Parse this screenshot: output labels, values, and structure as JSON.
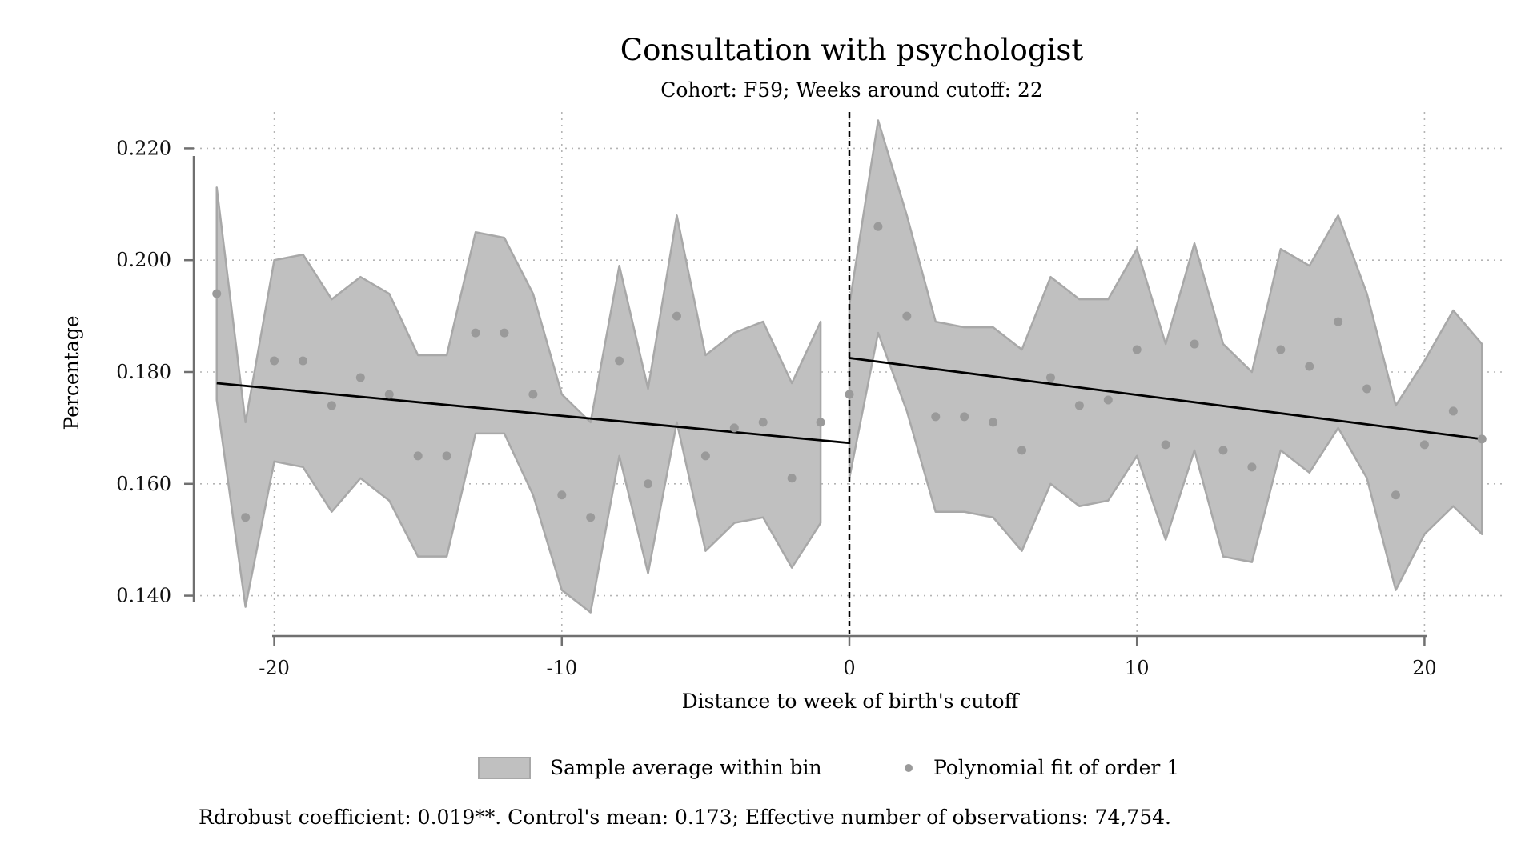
{
  "chart_data": {
    "type": "scatter",
    "title": "Consultation with psychologist",
    "subtitle": "Cohort: F59; Weeks around cutoff: 22",
    "xlabel": "Distance to week of birth's cutoff",
    "ylabel": "Percentage",
    "xlim": [
      -22.8,
      22.8
    ],
    "ylim": [
      0.1335,
      0.2265
    ],
    "xticks": [
      -20,
      -10,
      0,
      10,
      20
    ],
    "xtick_labels": [
      "-20",
      "-10",
      "0",
      "10",
      "20"
    ],
    "yticks": [
      0.14,
      0.16,
      0.18,
      0.2,
      0.22
    ],
    "ytick_labels": [
      "0.140",
      "0.160",
      "0.180",
      "0.200",
      "0.220"
    ],
    "grid": "dotted",
    "cutoff_line_x": 0,
    "legend": {
      "placement": "bottom",
      "items": [
        "Sample average within bin",
        "Polynomial fit of order 1"
      ]
    },
    "note": "Rdrobust coefficient: 0.019**. Control's mean: 0.173; Effective number of observations: 74,754.",
    "colors": {
      "band": "#c0c0c0",
      "band_edge": "#a8a8a8",
      "points": "#9a9a9a",
      "fit": "#000000",
      "grid": "#b4b4b4",
      "axis": "#707070"
    },
    "confidence_band": {
      "left": {
        "x": [
          -22,
          -21,
          -20,
          -19,
          -18,
          -17,
          -16,
          -15,
          -14,
          -13,
          -12,
          -11,
          -10,
          -9,
          -8,
          -7,
          -6,
          -5,
          -4,
          -3,
          -2,
          -1
        ],
        "upper": [
          0.213,
          0.171,
          0.2,
          0.201,
          0.193,
          0.197,
          0.194,
          0.183,
          0.183,
          0.205,
          0.204,
          0.194,
          0.176,
          0.171,
          0.199,
          0.177,
          0.208,
          0.183,
          0.187,
          0.189,
          0.178,
          0.189
        ],
        "lower": [
          0.175,
          0.138,
          0.164,
          0.163,
          0.155,
          0.161,
          0.157,
          0.147,
          0.147,
          0.169,
          0.169,
          0.158,
          0.141,
          0.137,
          0.165,
          0.144,
          0.171,
          0.148,
          0.153,
          0.154,
          0.145,
          0.153
        ]
      },
      "right": {
        "x": [
          0,
          1,
          2,
          3,
          4,
          5,
          6,
          7,
          8,
          9,
          10,
          11,
          12,
          13,
          14,
          15,
          16,
          17,
          18,
          19,
          20,
          21,
          22
        ],
        "upper": [
          0.192,
          0.225,
          0.208,
          0.189,
          0.188,
          0.188,
          0.184,
          0.197,
          0.193,
          0.193,
          0.202,
          0.185,
          0.203,
          0.185,
          0.18,
          0.202,
          0.199,
          0.208,
          0.194,
          0.174,
          0.182,
          0.191,
          0.185
        ],
        "lower": [
          0.161,
          0.187,
          0.173,
          0.155,
          0.155,
          0.154,
          0.148,
          0.16,
          0.156,
          0.157,
          0.165,
          0.15,
          0.166,
          0.147,
          0.146,
          0.166,
          0.162,
          0.17,
          0.161,
          0.141,
          0.151,
          0.156,
          0.151
        ]
      }
    },
    "points": {
      "x": [
        -22,
        -21,
        -20,
        -19,
        -18,
        -17,
        -16,
        -15,
        -14,
        -13,
        -12,
        -11,
        -10,
        -9,
        -8,
        -7,
        -6,
        -5,
        -4,
        -3,
        -2,
        -1,
        0,
        1,
        2,
        3,
        4,
        5,
        6,
        7,
        8,
        9,
        10,
        11,
        12,
        13,
        14,
        15,
        16,
        17,
        18,
        19,
        20,
        21,
        22
      ],
      "y": [
        0.194,
        0.154,
        0.182,
        0.182,
        0.174,
        0.179,
        0.176,
        0.165,
        0.165,
        0.187,
        0.187,
        0.176,
        0.158,
        0.154,
        0.182,
        0.16,
        0.19,
        0.165,
        0.17,
        0.171,
        0.161,
        0.171,
        0.176,
        0.206,
        0.19,
        0.172,
        0.172,
        0.171,
        0.166,
        0.179,
        0.174,
        0.175,
        0.184,
        0.167,
        0.185,
        0.166,
        0.163,
        0.184,
        0.181,
        0.189,
        0.177,
        0.158,
        0.167,
        0.173,
        0.168
      ]
    },
    "fit_lines": [
      {
        "x": [
          -22,
          0
        ],
        "y": [
          0.178,
          0.1673
        ]
      },
      {
        "x": [
          0,
          22
        ],
        "y": [
          0.1825,
          0.168
        ]
      }
    ]
  }
}
